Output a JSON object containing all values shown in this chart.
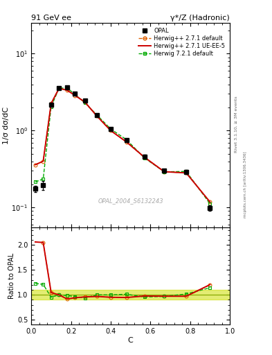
{
  "title_left": "91 GeV ee",
  "title_right": "γ*/Z (Hadronic)",
  "ylabel_main": "1/σ dσ/dC",
  "ylabel_ratio": "Ratio to OPAL",
  "xlabel": "C",
  "watermark": "OPAL_2004_S6132243",
  "right_label_top": "Rivet 3.1.10, ≥ 3M events",
  "right_label_bot": "mcplots.cern.ch [arXiv:1306.3436]",
  "opal_x": [
    0.02,
    0.06,
    0.1,
    0.14,
    0.18,
    0.22,
    0.27,
    0.33,
    0.4,
    0.48,
    0.57,
    0.67,
    0.78,
    0.9
  ],
  "opal_y": [
    0.175,
    0.195,
    2.15,
    3.55,
    3.65,
    3.05,
    2.45,
    1.6,
    1.05,
    0.75,
    0.46,
    0.3,
    0.29,
    0.098
  ],
  "opal_yerr": [
    0.015,
    0.025,
    0.12,
    0.12,
    0.13,
    0.1,
    0.09,
    0.07,
    0.05,
    0.04,
    0.025,
    0.018,
    0.018,
    0.008
  ],
  "hw271def_x": [
    0.02,
    0.06,
    0.1,
    0.14,
    0.18,
    0.22,
    0.27,
    0.33,
    0.4,
    0.48,
    0.57,
    0.67,
    0.78,
    0.9
  ],
  "hw271def_y": [
    0.36,
    0.4,
    2.25,
    3.55,
    3.35,
    2.87,
    2.35,
    1.55,
    1.0,
    0.71,
    0.45,
    0.292,
    0.282,
    0.118
  ],
  "hw271def_color": "#e06000",
  "hw271def_label": "Herwig++ 2.7.1 default",
  "hw271ue_x": [
    0.02,
    0.06,
    0.1,
    0.14,
    0.18,
    0.22,
    0.27,
    0.33,
    0.4,
    0.48,
    0.57,
    0.67,
    0.78,
    0.9
  ],
  "hw271ue_y": [
    0.36,
    0.4,
    2.25,
    3.55,
    3.35,
    2.87,
    2.35,
    1.55,
    1.0,
    0.71,
    0.45,
    0.292,
    0.282,
    0.118
  ],
  "hw271ue_color": "#cc0000",
  "hw271ue_label": "Herwig++ 2.7.1 UE-EE-5",
  "hw721_x": [
    0.02,
    0.06,
    0.1,
    0.14,
    0.18,
    0.22,
    0.27,
    0.33,
    0.4,
    0.48,
    0.57,
    0.67,
    0.78,
    0.9
  ],
  "hw721_y": [
    0.215,
    0.235,
    2.05,
    3.55,
    3.6,
    2.95,
    2.3,
    1.6,
    1.05,
    0.76,
    0.44,
    0.291,
    0.295,
    0.112
  ],
  "hw721_color": "#00aa00",
  "hw721_label": "Herwig 7.2.1 default",
  "ratio_hw271def_x": [
    0.06,
    0.1,
    0.14,
    0.18,
    0.22,
    0.27,
    0.33,
    0.4,
    0.48,
    0.57,
    0.67,
    0.78,
    0.9
  ],
  "ratio_hw271def_y": [
    2.05,
    1.05,
    1.0,
    0.92,
    0.943,
    0.96,
    0.97,
    0.952,
    0.947,
    0.978,
    0.973,
    0.972,
    1.2
  ],
  "ratio_hw271ue_x": [
    0.02,
    0.06,
    0.1,
    0.14,
    0.18,
    0.22,
    0.27,
    0.33,
    0.4,
    0.48,
    0.57,
    0.67,
    0.78,
    0.9
  ],
  "ratio_hw271ue_y": [
    2.06,
    2.05,
    1.045,
    1.0,
    0.918,
    0.942,
    0.959,
    0.969,
    0.952,
    0.947,
    0.978,
    0.973,
    0.972,
    1.205
  ],
  "ratio_hw721_x": [
    0.02,
    0.06,
    0.1,
    0.14,
    0.18,
    0.22,
    0.27,
    0.33,
    0.4,
    0.48,
    0.57,
    0.67,
    0.78,
    0.9
  ],
  "ratio_hw721_y": [
    1.23,
    1.21,
    0.953,
    1.0,
    0.986,
    0.967,
    0.939,
    1.0,
    1.0,
    1.013,
    0.957,
    0.97,
    1.017,
    1.143
  ],
  "opal_band_lo": 0.9,
  "opal_band_hi": 1.1,
  "opal_band_color": "#ccdd00",
  "opal_band_alpha": 0.55,
  "opal_line_color": "#88aa00",
  "ylim_main": [
    0.055,
    25.0
  ],
  "ylim_ratio": [
    0.4,
    2.35
  ],
  "xlim": [
    0.0,
    1.0
  ],
  "bg_color": "#ffffff"
}
